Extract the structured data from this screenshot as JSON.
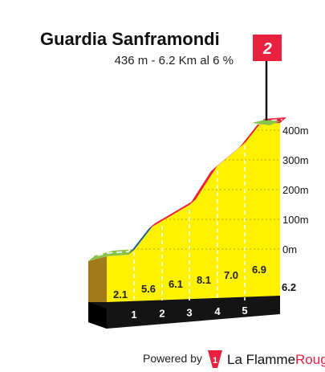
{
  "chart_data": {
    "type": "area",
    "title": "Guardia Sanframondi",
    "subtitle": "436 m - 6.2 Km al 6 %",
    "category_badge": "2",
    "x_km": [
      0,
      1,
      2,
      3,
      4,
      5,
      6.2
    ],
    "km_labels": [
      "1",
      "2",
      "3",
      "4",
      "5"
    ],
    "end_km_label": "6.2",
    "y_ticks": [
      "0m",
      "100m",
      "200m",
      "300m",
      "400m"
    ],
    "segment_gradients": [
      "2.1",
      "5.6",
      "6.1",
      "8.1",
      "7.0",
      "6.9"
    ],
    "segment_colors": [
      "#8bc34a",
      "#1e5fa0",
      "#e8213f",
      "#e8213f",
      "#e8213f",
      "#e8213f"
    ],
    "ylim": [
      0,
      436
    ]
  },
  "footer": {
    "powered_by": "Powered by",
    "brand_part1": "La Flamme",
    "brand_part2": "Rouge",
    "logo_digit": "1"
  },
  "colors": {
    "fill": "#fff200",
    "side": "#a37a19",
    "base": "#141414",
    "red": "#e8213f",
    "blue": "#1e5fa0",
    "green": "#8bc34a"
  }
}
